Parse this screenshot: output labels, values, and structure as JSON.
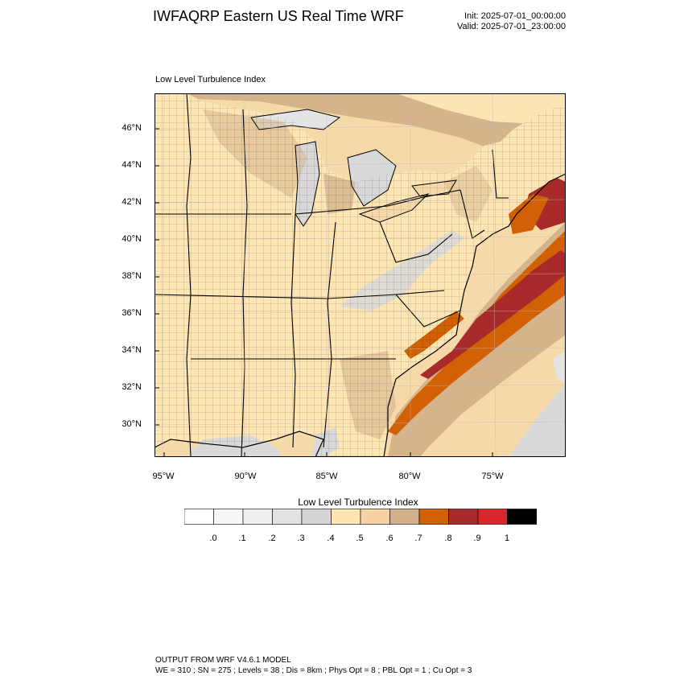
{
  "header": {
    "title": "IWFAQRP Eastern US Real Time WRF",
    "init": "Init: 2025-07-01_00:00:00",
    "valid": "Valid: 2025-07-01_23:00:00"
  },
  "map": {
    "title": "Low Level Turbulence Index",
    "lat_labels": [
      "46°N",
      "44°N",
      "42°N",
      "40°N",
      "38°N",
      "36°N",
      "34°N",
      "32°N",
      "30°N"
    ],
    "lon_labels": [
      "95°W",
      "90°W",
      "85°W",
      "80°W",
      "75°W"
    ],
    "colors": {
      "land": "#FEE5B4",
      "light_tan": "#F6D9A9",
      "tan": "#D5B48C",
      "orange": "#D16104",
      "dark_red": "#A82A2A",
      "gray": "#D9D9D9",
      "light_gray": "#E4E4E4",
      "boundary": "#000000"
    }
  },
  "colorbar": {
    "title": "Low Level Turbulence Index",
    "labels": [
      ".0",
      ".1",
      ".2",
      ".3",
      ".4",
      ".5",
      ".6",
      ".7",
      ".8",
      ".9",
      "1"
    ],
    "colors": [
      "#FFFFFF",
      "#F7F7F7",
      "#EFEFEF",
      "#E3E3E3",
      "#D6D6D6",
      "#FEE5B4",
      "#F6D2A4",
      "#D5B08C",
      "#D16104",
      "#A82A2A",
      "#D9262B",
      "#000000"
    ]
  },
  "footer": {
    "line1": "OUTPUT FROM WRF V4.6.1 MODEL",
    "line2": "WE = 310 ; SN = 275 ; Levels = 38 ; Dis = 8km ; Phys Opt = 8 ; PBL Opt = 1 ; Cu Opt = 3"
  }
}
